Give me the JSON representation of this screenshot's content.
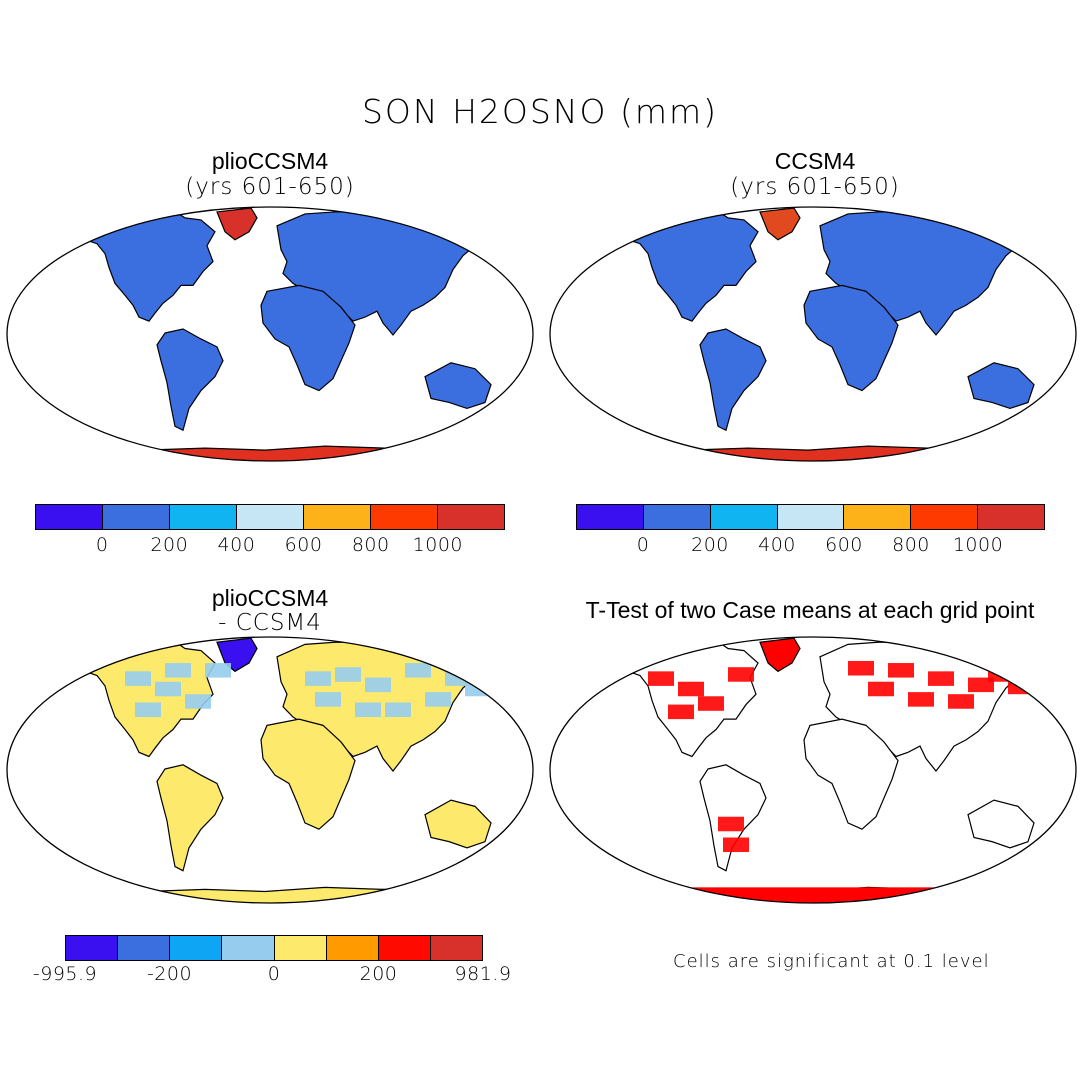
{
  "title": "SON H2OSNO (mm)",
  "panels": [
    {
      "id": "plio",
      "title": "plioCCSM4",
      "subtitle": "(yrs 601-650)",
      "land_color": "#3b6fe0",
      "ice_color": "#e03020",
      "greenland_color": "#d8302a"
    },
    {
      "id": "ccsm4",
      "title": "CCSM4",
      "subtitle": "(yrs 601-650)",
      "land_color": "#3b6fe0",
      "ice_color": "#e03020",
      "greenland_color": "#e04a1e"
    },
    {
      "id": "diff",
      "title": "plioCCSM4",
      "subtitle": "- CCSM4",
      "land_color": "#fde96b",
      "ice_color": "#fde96b",
      "greenland_color": "#3a10f0"
    },
    {
      "id": "ttest",
      "title": "T-Test of two Case means at each grid point",
      "subtitle": "",
      "land_color": "#ffffff",
      "ice_color": "#ff0000",
      "greenland_color": "#ff0000"
    }
  ],
  "colorbar_top": {
    "colors": [
      "#3a10f0",
      "#3b6fe0",
      "#0fb4f0",
      "#c6e6f5",
      "#fdb21a",
      "#ff3a00",
      "#d8302a"
    ],
    "labels": [
      "0",
      "200",
      "400",
      "600",
      "800",
      "1000"
    ]
  },
  "colorbar_diff": {
    "colors": [
      "#3a10f0",
      "#3b6fe0",
      "#0fa5f5",
      "#96cdee",
      "#fde96b",
      "#ff9a00",
      "#ff0a00",
      "#d8302a"
    ],
    "labels": [
      "-995.9",
      "-200",
      "0",
      "200",
      "981.9"
    ]
  },
  "significance_note": "Cells are significant at 0.1 level"
}
